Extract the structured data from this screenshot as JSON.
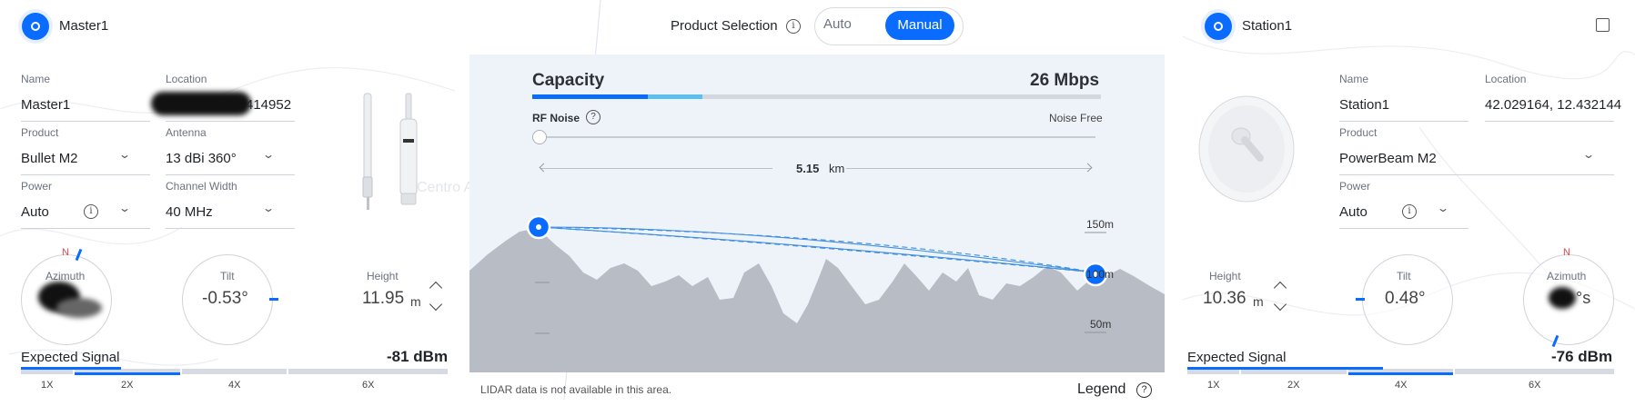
{
  "master": {
    "title": "Master1",
    "name_label": "Name",
    "name_value": "Master1",
    "location_label": "Location",
    "location_value": "414952",
    "product_label": "Product",
    "product_value": "Bullet M2",
    "antenna_label": "Antenna",
    "antenna_value": "13 dBi 360°",
    "power_label": "Power",
    "power_value": "Auto",
    "channel_label": "Channel Width",
    "channel_value": "40 MHz",
    "azimuth_label": "Azimuth",
    "azimuth_n": "N",
    "tilt_label": "Tilt",
    "tilt_value": "-0.53°",
    "height_label": "Height",
    "height_value": "11.95",
    "height_unit": "m",
    "signal_label": "Expected Signal",
    "signal_value": "-81 dBm",
    "multipliers": [
      "1X",
      "2X",
      "4X",
      "6X"
    ],
    "device_watermark": "Centro Acea"
  },
  "station": {
    "title": "Station1",
    "name_label": "Name",
    "name_value": "Station1",
    "location_label": "Location",
    "location_value": "42.029164, 12.432144",
    "product_label": "Product",
    "product_value": "PowerBeam M2",
    "power_label": "Power",
    "power_value": "Auto",
    "height_label": "Height",
    "height_value": "10.36",
    "height_unit": "m",
    "tilt_label": "Tilt",
    "tilt_value": "0.48°",
    "azimuth_label": "Azimuth",
    "azimuth_n": "N",
    "azimuth_suffix": "°s",
    "signal_label": "Expected Signal",
    "signal_value": "-76 dBm",
    "multipliers": [
      "1X",
      "2X",
      "4X",
      "6X"
    ]
  },
  "product_selection": {
    "label": "Product Selection",
    "auto": "Auto",
    "manual": "Manual",
    "selected": "Manual"
  },
  "link": {
    "capacity_label": "Capacity",
    "capacity_value": "26 Mbps",
    "rf_noise_label": "RF Noise",
    "noise_free_label": "Noise Free",
    "distance_value": "5.15",
    "distance_unit": "km",
    "elev_labels": [
      "150m",
      "100m",
      "50m"
    ],
    "lidar_note": "LIDAR data is not available in this area.",
    "legend_label": "Legend"
  },
  "colors": {
    "accent": "#0a6cff",
    "accent_light": "#5bc0f0",
    "terrain": "#b8bcc4"
  }
}
